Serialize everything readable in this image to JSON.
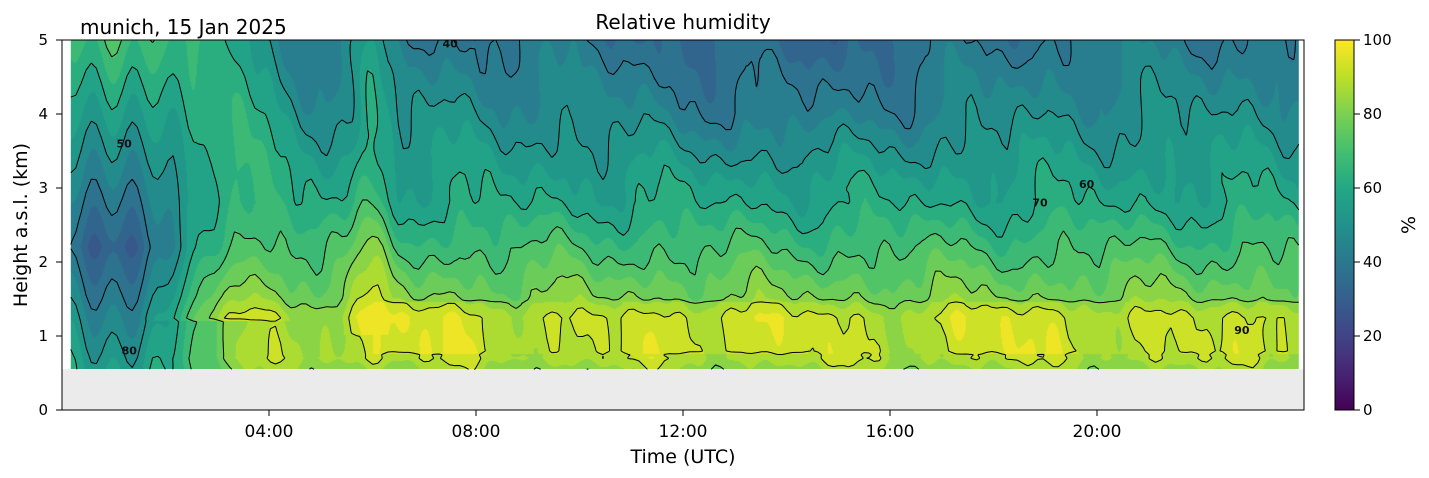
{
  "chart_data": {
    "type": "heatmap",
    "title": "Relative humidity",
    "site_label": "munich, 15 Jan 2025",
    "xlabel": "Time (UTC)",
    "ylabel": "Height a.s.l. (km)",
    "xlim_hours": [
      0,
      24
    ],
    "ylim_km": [
      0,
      5
    ],
    "x_ticks": [
      {
        "hour": 4,
        "label": "04:00"
      },
      {
        "hour": 8,
        "label": "08:00"
      },
      {
        "hour": 12,
        "label": "12:00"
      },
      {
        "hour": 16,
        "label": "16:00"
      },
      {
        "hour": 20,
        "label": "20:00"
      }
    ],
    "y_ticks": [
      0,
      1,
      2,
      3,
      4,
      5
    ],
    "colorbar": {
      "label": "%",
      "range": [
        0,
        100
      ],
      "ticks": [
        0,
        20,
        40,
        60,
        80,
        100
      ],
      "colormap": "viridis"
    },
    "no_data_below_km": 0.55,
    "no_data_color": "#ebebeb",
    "data_start_hour": 0.17,
    "data_end_hour": 23.9,
    "contour_levels": [
      40,
      50,
      60,
      70,
      80,
      90
    ],
    "contour_labels": [
      {
        "level": 40,
        "hour": 7.5,
        "km": 4.9
      },
      {
        "level": 50,
        "hour": 1.2,
        "km": 3.55
      },
      {
        "level": 60,
        "hour": 19.8,
        "km": 3.0
      },
      {
        "level": 70,
        "hour": 18.9,
        "km": 2.75
      },
      {
        "level": 80,
        "hour": 1.3,
        "km": 0.75
      },
      {
        "level": 90,
        "hour": 22.8,
        "km": 1.03
      }
    ]
  }
}
